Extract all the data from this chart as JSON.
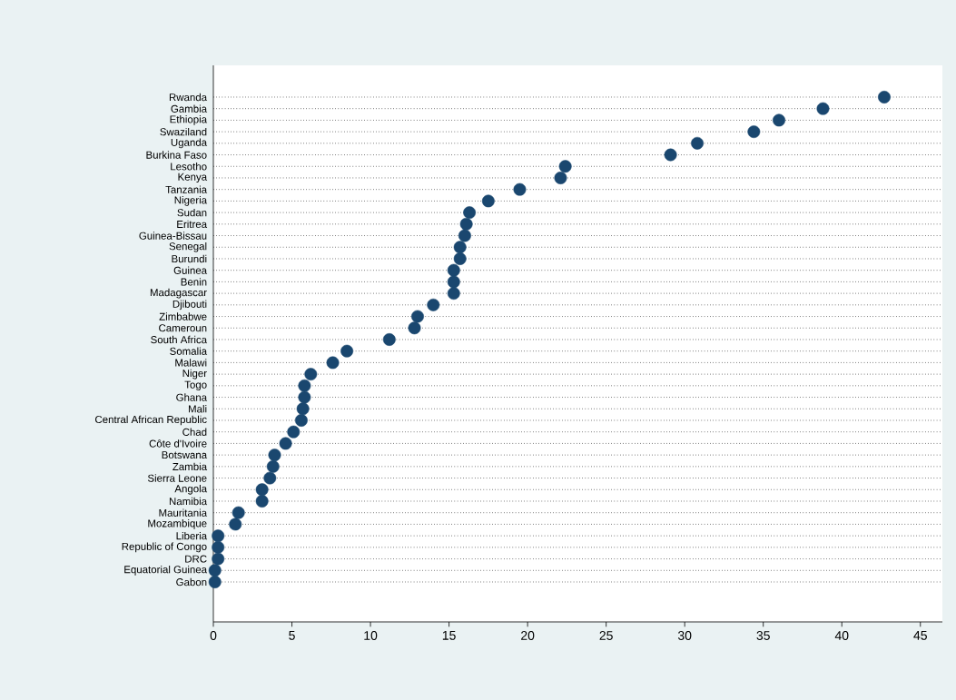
{
  "chart_data": {
    "type": "scatter",
    "orientation": "horizontal",
    "categories": [
      "Rwanda",
      "Gambia",
      "Ethiopia",
      "Swaziland",
      "Uganda",
      "Burkina Faso",
      "Lesotho",
      "Kenya",
      "Tanzania",
      "Nigeria",
      "Sudan",
      "Eritrea",
      "Guinea-Bissau",
      "Senegal",
      "Burundi",
      "Guinea",
      "Benin",
      "Madagascar",
      "Djibouti",
      "Zimbabwe",
      "Cameroun",
      "South Africa",
      "Somalia",
      "Malawi",
      "Niger",
      "Togo",
      "Ghana",
      "Mali",
      "Central African Republic",
      "Chad",
      "Côte d'Ivoire",
      "Botswana",
      "Zambia",
      "Sierra Leone",
      "Angola",
      "Namibia",
      "Mauritania",
      "Mozambique",
      "Liberia",
      "Republic of Congo",
      "DRC",
      "Equatorial Guinea",
      "Gabon"
    ],
    "values": [
      42.7,
      38.8,
      36.0,
      34.4,
      30.8,
      29.1,
      22.4,
      22.1,
      19.5,
      17.5,
      16.3,
      16.1,
      16.0,
      15.7,
      15.7,
      15.3,
      15.3,
      15.3,
      14.0,
      13.0,
      12.8,
      11.2,
      8.5,
      7.6,
      6.2,
      5.8,
      5.8,
      5.7,
      5.6,
      5.1,
      4.6,
      3.9,
      3.8,
      3.6,
      3.1,
      3.1,
      1.6,
      1.4,
      0.3,
      0.3,
      0.3,
      0.1,
      0.1
    ],
    "color": "#1a476f",
    "marker": "circle",
    "grid": "y",
    "line_style": "dotted",
    "xlim": [
      0,
      46.4
    ],
    "xticks": [
      0,
      5,
      10,
      15,
      20,
      25,
      30,
      35,
      40,
      45
    ]
  }
}
